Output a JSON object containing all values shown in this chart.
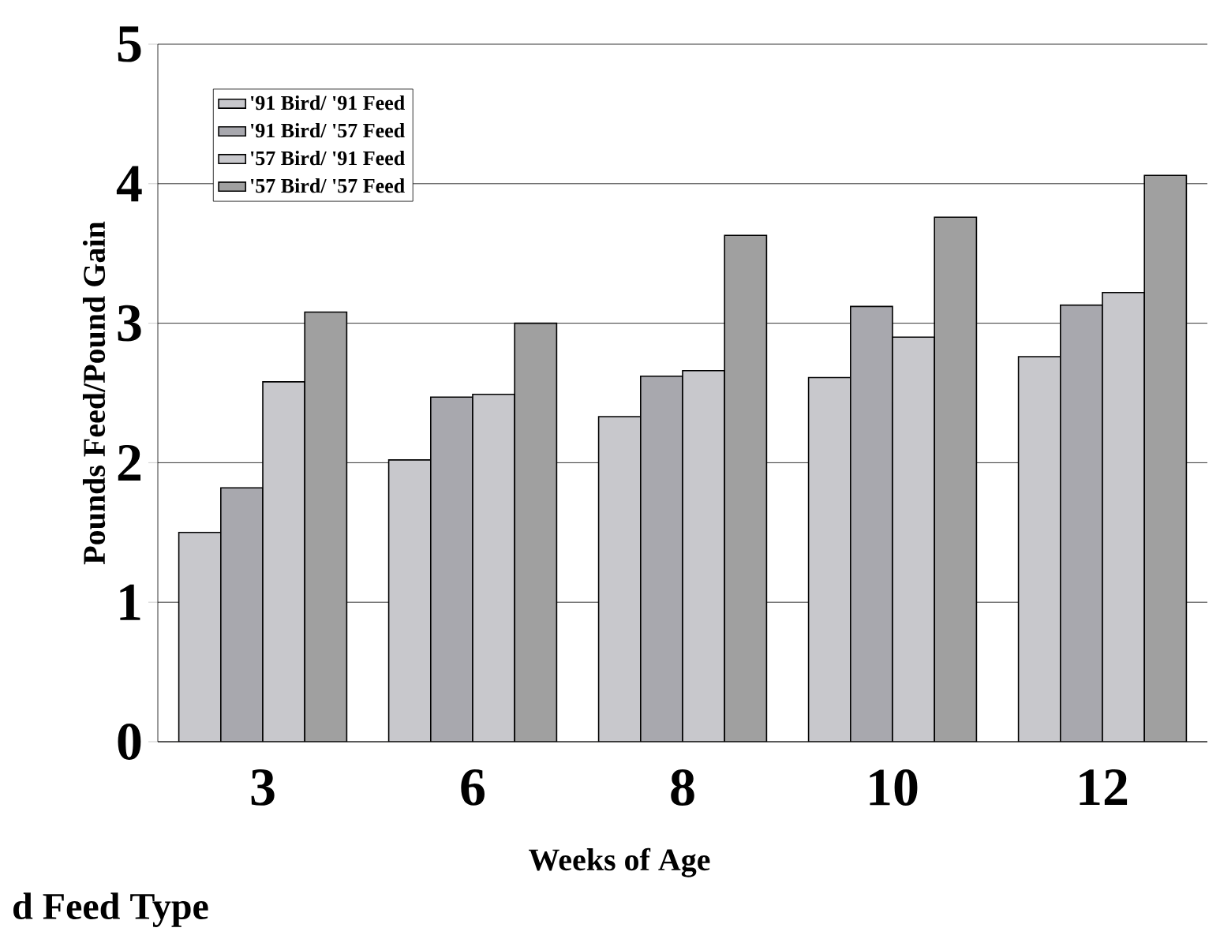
{
  "chart_data": {
    "type": "bar",
    "xlabel": "Weeks of Age",
    "ylabel": "Pounds Feed/Pound Gain",
    "annotations": [
      "d Feed Type"
    ],
    "categories": [
      "3",
      "6",
      "8",
      "10",
      "12"
    ],
    "series": [
      {
        "name": "'91 Bird/ '91 Feed",
        "color": "#c8c8cc",
        "values": [
          1.5,
          2.02,
          2.33,
          2.61,
          2.76
        ]
      },
      {
        "name": "'91 Bird/ '57 Feed",
        "color": "#a8a8ae",
        "values": [
          1.82,
          2.47,
          2.62,
          3.12,
          3.13
        ]
      },
      {
        "name": "'57 Bird/ '91 Feed",
        "color": "#c8c8cc",
        "values": [
          2.58,
          2.49,
          2.66,
          2.9,
          3.22
        ]
      },
      {
        "name": "'57 Bird/ '57 Feed",
        "color": "#a0a0a0",
        "values": [
          3.08,
          3.0,
          3.63,
          3.76,
          4.06
        ]
      }
    ],
    "ylim": [
      0,
      5
    ],
    "yticks": [
      0,
      1,
      2,
      3,
      4,
      5
    ],
    "grid": "y",
    "legend": "top left"
  }
}
